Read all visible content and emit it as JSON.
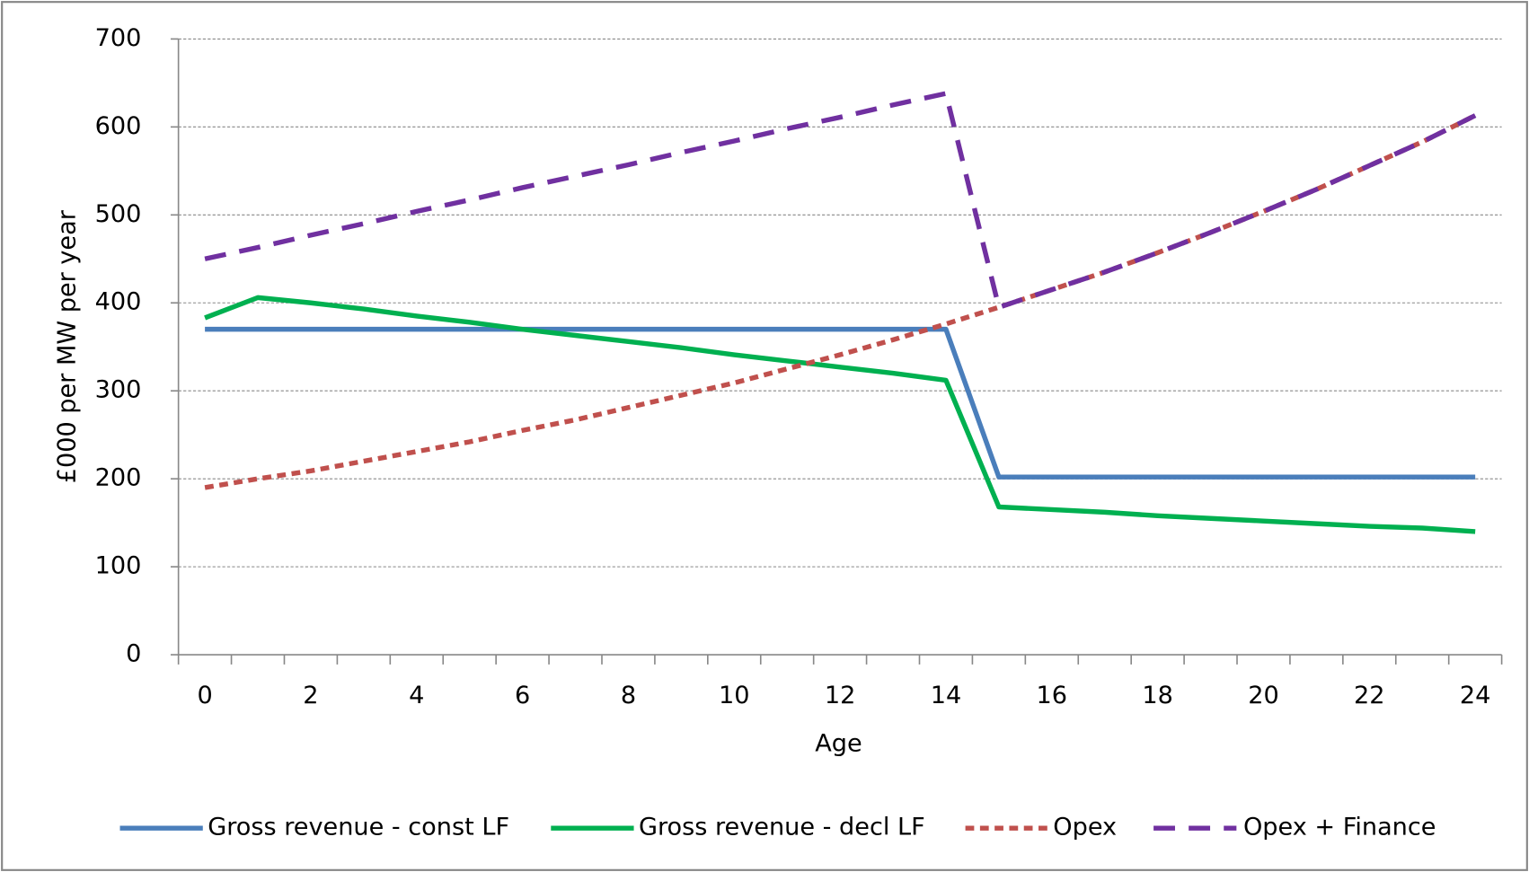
{
  "chart_data": {
    "type": "line",
    "x_label": "Age",
    "y_label": "£000 per MW per year",
    "categories": [
      "0",
      null,
      "2",
      null,
      "4",
      null,
      "6",
      null,
      "8",
      null,
      "10",
      null,
      "12",
      null,
      "14",
      null,
      "16",
      null,
      "18",
      null,
      "20",
      null,
      "22",
      null,
      "24"
    ],
    "ylim": [
      0,
      700
    ],
    "yticks": [
      0,
      100,
      200,
      300,
      400,
      500,
      600,
      700
    ],
    "grid": true,
    "series": [
      {
        "name": "Gross revenue - const LF",
        "color": "#4a7ebb",
        "dash": "solid",
        "values": [
          370,
          370,
          370,
          370,
          370,
          370,
          370,
          370,
          370,
          370,
          370,
          370,
          370,
          370,
          370,
          202,
          202,
          202,
          202,
          202,
          202,
          202,
          202,
          202,
          202
        ]
      },
      {
        "name": "Gross revenue - decl LF",
        "color": "#00b050",
        "dash": "solid",
        "values": [
          383,
          406,
          400,
          393,
          385,
          378,
          370,
          363,
          356,
          349,
          341,
          334,
          327,
          320,
          312,
          168,
          165,
          162,
          158,
          155,
          152,
          149,
          146,
          144,
          140
        ]
      },
      {
        "name": "Opex",
        "color": "#c0504d",
        "dash": "short",
        "values": [
          190,
          200,
          209,
          220,
          231,
          242,
          255,
          267,
          281,
          295,
          309,
          325,
          341,
          358,
          376,
          395,
          415,
          435,
          457,
          480,
          504,
          529,
          556,
          583,
          613
        ]
      },
      {
        "name": "Opex + Finance",
        "color": "#7030a0",
        "dash": "long",
        "values": [
          450,
          463,
          477,
          490,
          504,
          517,
          531,
          544,
          557,
          571,
          584,
          598,
          611,
          625,
          638,
          395,
          415,
          435,
          457,
          480,
          504,
          529,
          556,
          583,
          613
        ]
      }
    ]
  }
}
